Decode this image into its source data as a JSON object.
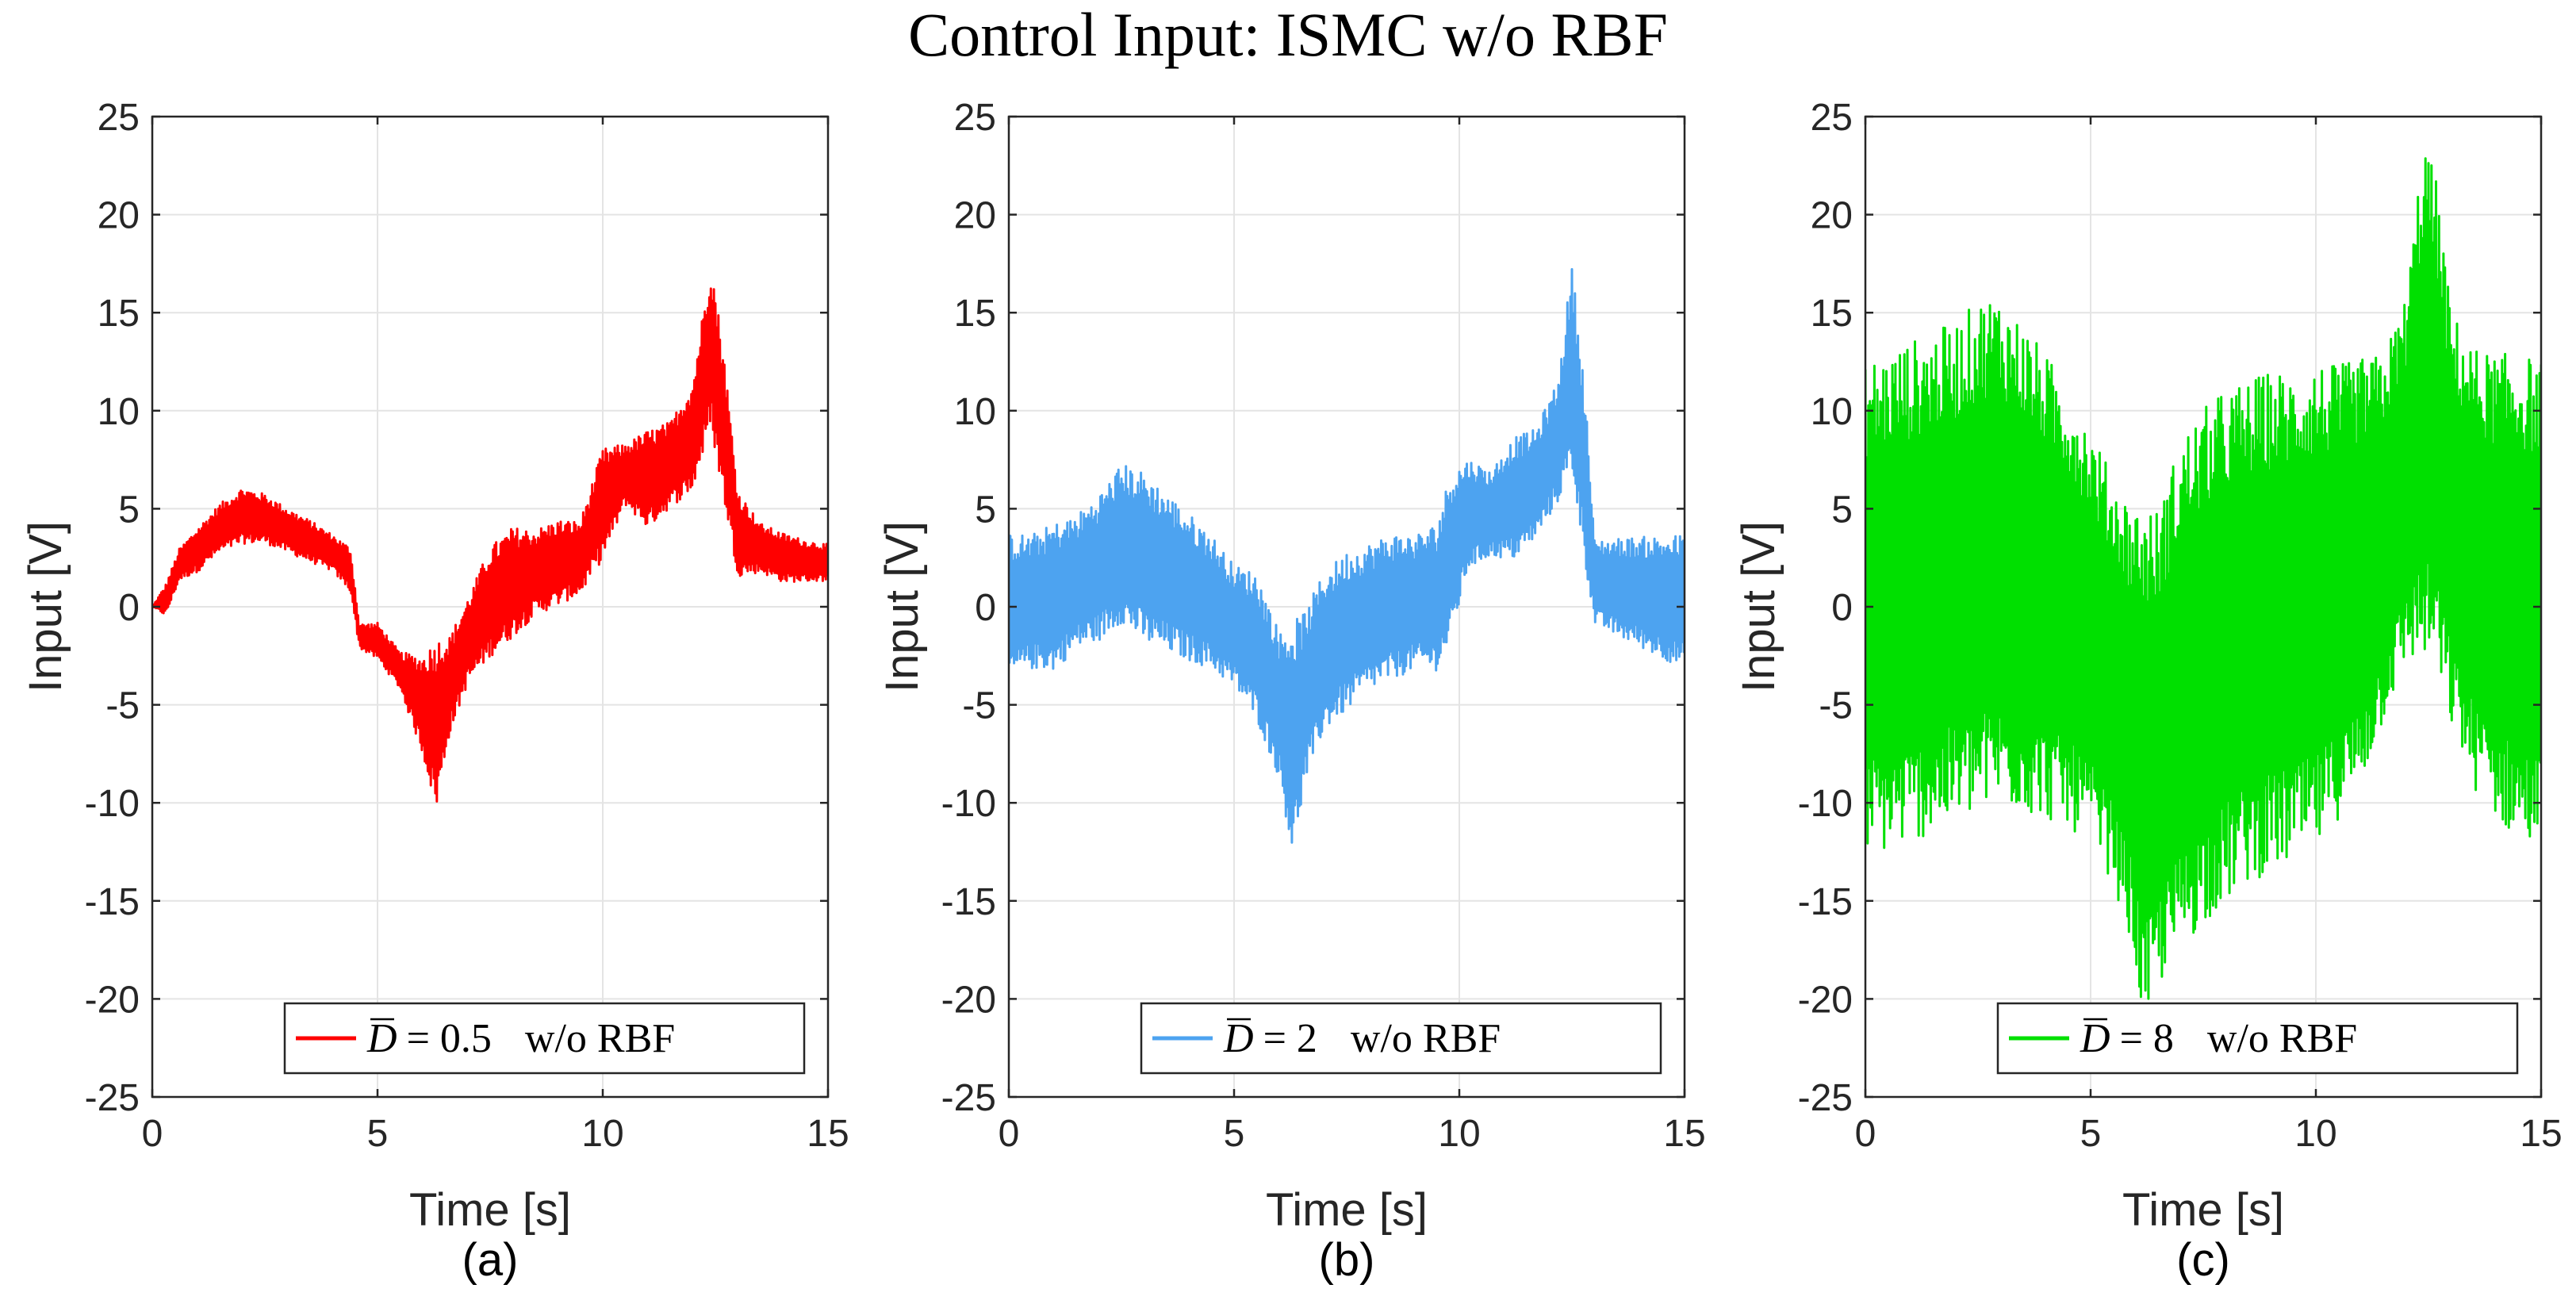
{
  "figure_title": "Control Input: ISMC w/o RBF",
  "chart_data": [
    {
      "type": "line",
      "panel_label": "(a)",
      "xlabel": "Time [s]",
      "ylabel": "Input [V]",
      "xlim": [
        0,
        15
      ],
      "ylim": [
        -25,
        25
      ],
      "xticks": [
        "0",
        "5",
        "10",
        "15"
      ],
      "yticks": [
        "-25",
        "-20",
        "-15",
        "-10",
        "-5",
        "0",
        "5",
        "10",
        "15",
        "20",
        "25"
      ],
      "grid": true,
      "legend_position": "bottom-right",
      "series": [
        {
          "name": "D̄ = 0.5    w/o RBF",
          "name_symbol": "D",
          "name_value": "= 0.5",
          "name_suffix": "w/o RBF",
          "color": "#ff0000",
          "x": [
            0,
            0.3,
            0.6,
            1,
            1.5,
            2,
            2.5,
            3,
            3.5,
            4,
            4.4,
            4.6,
            5,
            5.5,
            6,
            6.3,
            6.6,
            7,
            7.5,
            8,
            8.5,
            9,
            9.5,
            10,
            10.5,
            11,
            11.5,
            12,
            12.4,
            12.7,
            13,
            13.5,
            14,
            14.5,
            15
          ],
          "lower": [
            0,
            -0.3,
            1.5,
            2,
            3,
            3.5,
            3.5,
            3,
            2.5,
            2,
            1,
            -2,
            -2.5,
            -4,
            -7,
            -9.5,
            -6,
            -3.5,
            -2,
            -1,
            0,
            0.5,
            1,
            3,
            5.5,
            4.5,
            5.5,
            6.5,
            10,
            6,
            2,
            2,
            1.5,
            1.5,
            1.5
          ],
          "upper": [
            0,
            1,
            2.8,
            3.8,
            5,
            5.8,
            5.5,
            4.8,
            4.2,
            3.5,
            2.8,
            -1,
            -1,
            -2.5,
            -3,
            -2.5,
            -2,
            0,
            2.5,
            3.5,
            3.5,
            4,
            4,
            7.5,
            8,
            8.5,
            9,
            11,
            17,
            12,
            5.5,
            4,
            3.5,
            3.2,
            3
          ]
        }
      ]
    },
    {
      "type": "line",
      "panel_label": "(b)",
      "xlabel": "Time [s]",
      "ylabel": "Input [V]",
      "xlim": [
        0,
        15
      ],
      "ylim": [
        -25,
        25
      ],
      "xticks": [
        "0",
        "5",
        "10",
        "15"
      ],
      "yticks": [
        "-25",
        "-20",
        "-15",
        "-10",
        "-5",
        "0",
        "5",
        "10",
        "15",
        "20",
        "25"
      ],
      "grid": true,
      "legend_position": "bottom-right",
      "series": [
        {
          "name": "D̄ = 2    w/o RBF",
          "name_symbol": "D",
          "name_value": "= 2",
          "name_suffix": "w/o RBF",
          "color": "#4da3f0",
          "x": [
            0,
            0.5,
            1,
            1.5,
            2,
            2.5,
            3,
            3.5,
            4,
            4.5,
            5,
            5.5,
            6,
            6.3,
            6.6,
            7,
            7.5,
            8,
            8.5,
            9,
            9.5,
            9.8,
            10.2,
            10.7,
            11.2,
            11.7,
            12.2,
            12.5,
            12.8,
            13,
            13.5,
            14,
            14.5,
            15
          ],
          "lower": [
            -3,
            -2.5,
            -2.5,
            -1.5,
            -1,
            0,
            -1,
            -1.5,
            -2,
            -2.5,
            -3.5,
            -5,
            -8,
            -11.5,
            -8,
            -5.5,
            -4.5,
            -3.5,
            -3,
            -2.5,
            -2.5,
            -1,
            2.5,
            3,
            3,
            4,
            6,
            8,
            3,
            -0.5,
            -1,
            -1.5,
            -2,
            -2.5
          ],
          "upper": [
            3,
            3,
            3.5,
            4,
            5,
            6.5,
            6,
            5,
            4,
            3,
            1.5,
            1,
            -2,
            -2,
            -1,
            1,
            2,
            2.5,
            3,
            3,
            3.5,
            6,
            7,
            6.5,
            8,
            8.5,
            11,
            16.5,
            10,
            3,
            3,
            3,
            3,
            3
          ]
        }
      ]
    },
    {
      "type": "line",
      "panel_label": "(c)",
      "xlabel": "Time [s]",
      "ylabel": "Input [V]",
      "xlim": [
        0,
        15
      ],
      "ylim": [
        -25,
        25
      ],
      "xticks": [
        "0",
        "5",
        "10",
        "15"
      ],
      "yticks": [
        "-25",
        "-20",
        "-15",
        "-10",
        "-5",
        "0",
        "5",
        "10",
        "15",
        "20",
        "25"
      ],
      "grid": true,
      "legend_position": "bottom-right",
      "series": [
        {
          "name": "D̄ = 8    w/o RBF",
          "name_symbol": "D",
          "name_value": "= 8",
          "name_suffix": "w/o RBF",
          "color": "#00e000",
          "x": [
            0,
            0.5,
            1,
            1.5,
            2,
            2.5,
            2.9,
            3.5,
            4,
            4.5,
            5,
            5.5,
            5.9,
            6.2,
            6.5,
            7,
            7.5,
            8,
            8.5,
            9,
            9.5,
            10,
            10.5,
            11,
            11.5,
            12,
            12.4,
            12.7,
            13,
            13.5,
            14,
            14.5,
            15
          ],
          "lower": [
            -10,
            -10,
            -9.5,
            -9,
            -8.5,
            -8,
            -7.5,
            -8,
            -8.5,
            -9,
            -10,
            -12,
            -15,
            -19,
            -17,
            -15,
            -13.5,
            -12.5,
            -11.5,
            -11,
            -10.5,
            -10,
            -8.5,
            -7,
            -4,
            -1,
            0,
            -1,
            -4,
            -7,
            -8.5,
            -9.5,
            -10
          ],
          "upper": [
            10,
            10.5,
            11,
            11.5,
            12,
            13,
            13.5,
            12,
            10.5,
            9,
            7,
            4.5,
            3,
            2.5,
            2.5,
            6,
            7.5,
            8.5,
            9,
            9.5,
            9.5,
            10,
            10,
            10.5,
            11,
            14,
            21.5,
            19,
            13,
            11,
            10.5,
            10.5,
            10
          ]
        }
      ]
    }
  ]
}
